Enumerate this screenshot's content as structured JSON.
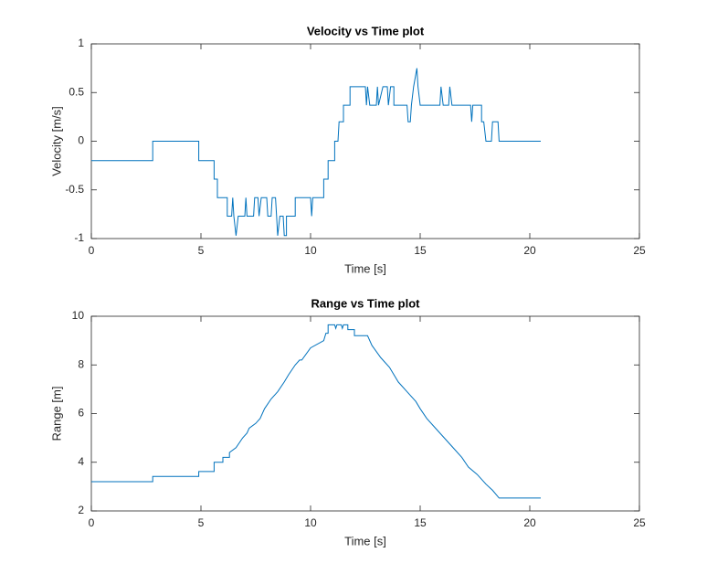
{
  "chart_data": [
    {
      "type": "line",
      "title": "Velocity vs Time plot",
      "xlabel": "Time [s]",
      "ylabel": "Velocity [m/s]",
      "color": "#0072bd",
      "xlim": [
        0,
        25
      ],
      "xticks": [
        0,
        5,
        10,
        15,
        20,
        25
      ],
      "ylim": [
        -1,
        1
      ],
      "yticks": [
        -1,
        -0.5,
        0,
        0.5,
        1
      ],
      "x": [
        0,
        2.8,
        2.8,
        4.9,
        4.9,
        5.6,
        5.6,
        5.75,
        5.75,
        6.2,
        6.2,
        6.4,
        6.45,
        6.5,
        6.6,
        6.7,
        7.0,
        7.05,
        7.1,
        7.4,
        7.45,
        7.6,
        7.65,
        7.75,
        8.0,
        8.05,
        8.2,
        8.25,
        8.4,
        8.45,
        8.5,
        8.6,
        8.75,
        8.8,
        8.9,
        8.9,
        9.3,
        9.3,
        10.0,
        10.05,
        10.1,
        10.6,
        10.6,
        10.8,
        10.8,
        11.1,
        11.1,
        11.25,
        11.3,
        11.5,
        11.5,
        11.8,
        11.8,
        12.5,
        12.55,
        12.6,
        12.7,
        13.0,
        13.05,
        13.1,
        13.3,
        13.5,
        13.55,
        13.65,
        13.8,
        13.8,
        14.4,
        14.45,
        14.55,
        14.6,
        14.7,
        14.85,
        14.9,
        15.0,
        15.9,
        15.95,
        16.05,
        16.3,
        16.35,
        16.45,
        17.3,
        17.35,
        17.4,
        17.8,
        17.8,
        17.9,
        18.0,
        18.25,
        18.3,
        18.55,
        18.6,
        20.5
      ],
      "values": [
        -0.2,
        -0.2,
        0,
        0,
        -0.2,
        -0.2,
        -0.39,
        -0.39,
        -0.58,
        -0.58,
        -0.77,
        -0.77,
        -0.58,
        -0.77,
        -0.97,
        -0.77,
        -0.77,
        -0.58,
        -0.77,
        -0.77,
        -0.58,
        -0.58,
        -0.77,
        -0.58,
        -0.58,
        -0.77,
        -0.77,
        -0.58,
        -0.58,
        -0.77,
        -0.97,
        -0.77,
        -0.77,
        -0.97,
        -0.97,
        -0.77,
        -0.77,
        -0.58,
        -0.58,
        -0.77,
        -0.58,
        -0.58,
        -0.39,
        -0.39,
        -0.2,
        -0.2,
        0,
        0,
        0.2,
        0.2,
        0.37,
        0.37,
        0.56,
        0.56,
        0.37,
        0.56,
        0.37,
        0.37,
        0.56,
        0.37,
        0.56,
        0.56,
        0.37,
        0.56,
        0.56,
        0.37,
        0.37,
        0.2,
        0.2,
        0.37,
        0.56,
        0.75,
        0.56,
        0.37,
        0.37,
        0.56,
        0.37,
        0.37,
        0.56,
        0.37,
        0.37,
        0.2,
        0.37,
        0.37,
        0.2,
        0.2,
        0,
        0,
        0.2,
        0.2,
        0,
        0
      ]
    },
    {
      "type": "line",
      "title": "Range vs Time plot",
      "xlabel": "Time [s]",
      "ylabel": "Range [m]",
      "color": "#0072bd",
      "xlim": [
        0,
        25
      ],
      "xticks": [
        0,
        5,
        10,
        15,
        20,
        25
      ],
      "ylim": [
        2,
        10
      ],
      "yticks": [
        2,
        4,
        6,
        8,
        10
      ],
      "x": [
        0,
        2.8,
        2.8,
        4.9,
        4.9,
        5.6,
        5.6,
        6.0,
        6.0,
        6.3,
        6.3,
        6.6,
        6.9,
        7.1,
        7.2,
        7.5,
        7.7,
        7.9,
        8.2,
        8.5,
        8.8,
        9.0,
        9.3,
        9.5,
        9.6,
        10.0,
        10.6,
        10.7,
        10.8,
        10.8,
        11.1,
        11.15,
        11.2,
        11.4,
        11.45,
        11.5,
        11.7,
        11.7,
        12.0,
        12.0,
        12.6,
        12.8,
        13.2,
        13.6,
        14.0,
        14.4,
        14.8,
        15.0,
        15.3,
        15.7,
        16.1,
        16.5,
        16.9,
        17.2,
        17.6,
        18.0,
        18.3,
        18.6,
        20.5
      ],
      "values": [
        3.2,
        3.2,
        3.42,
        3.42,
        3.62,
        3.62,
        4.0,
        4.0,
        4.2,
        4.2,
        4.4,
        4.6,
        5.0,
        5.2,
        5.4,
        5.6,
        5.8,
        6.2,
        6.6,
        6.9,
        7.3,
        7.6,
        8.0,
        8.2,
        8.2,
        8.7,
        9.0,
        9.3,
        9.3,
        9.65,
        9.65,
        9.5,
        9.65,
        9.65,
        9.5,
        9.65,
        9.65,
        9.45,
        9.45,
        9.2,
        9.2,
        8.8,
        8.3,
        7.9,
        7.3,
        6.9,
        6.5,
        6.2,
        5.8,
        5.4,
        5.0,
        4.6,
        4.2,
        3.8,
        3.5,
        3.1,
        2.85,
        2.53,
        2.53
      ]
    }
  ]
}
